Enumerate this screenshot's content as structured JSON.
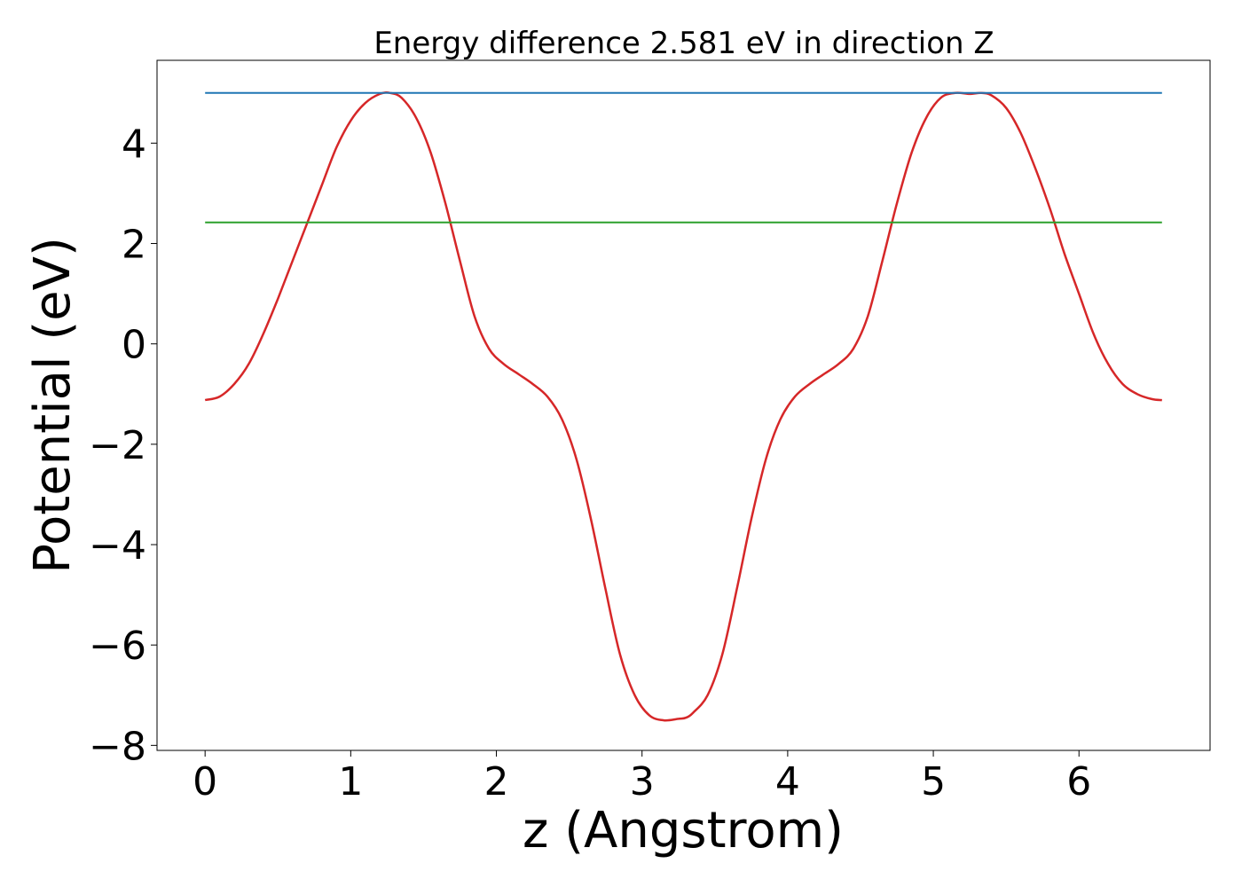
{
  "chart_data": {
    "type": "line",
    "title": "Energy difference 2.581 eV in direction Z",
    "xlabel": "z (Angstrom)",
    "ylabel": "Potential (eV)",
    "xlim": [
      -0.33,
      6.9
    ],
    "ylim": [
      -8.1,
      5.65
    ],
    "grid": false,
    "xticks": [
      0,
      1,
      2,
      3,
      4,
      5,
      6
    ],
    "xtick_labels": [
      "0",
      "1",
      "2",
      "3",
      "4",
      "5",
      "6"
    ],
    "yticks": [
      -8,
      -6,
      -4,
      -2,
      0,
      2,
      4
    ],
    "ytick_labels": [
      "−8",
      "−6",
      "−4",
      "−2",
      "0",
      "2",
      "4"
    ],
    "series": [
      {
        "color": "#d62728",
        "x": [
          0.0,
          0.1,
          0.2,
          0.3,
          0.4,
          0.5,
          0.6,
          0.7,
          0.8,
          0.9,
          1.0,
          1.1,
          1.2,
          1.27,
          1.35,
          1.45,
          1.55,
          1.65,
          1.75,
          1.85,
          1.95,
          2.05,
          2.15,
          2.25,
          2.35,
          2.45,
          2.55,
          2.65,
          2.75,
          2.85,
          2.95,
          3.05,
          3.15,
          3.25,
          3.3,
          3.35,
          3.45,
          3.55,
          3.65,
          3.75,
          3.85,
          3.95,
          4.05,
          4.15,
          4.25,
          4.35,
          4.45,
          4.55,
          4.65,
          4.75,
          4.85,
          4.95,
          5.05,
          5.15,
          5.25,
          5.33,
          5.4,
          5.5,
          5.6,
          5.7,
          5.8,
          5.9,
          6.0,
          6.1,
          6.2,
          6.3,
          6.4,
          6.5,
          6.57
        ],
        "y": [
          -1.12,
          -1.05,
          -0.8,
          -0.4,
          0.2,
          0.9,
          1.65,
          2.4,
          3.15,
          3.9,
          4.45,
          4.8,
          4.98,
          5.0,
          4.9,
          4.5,
          3.8,
          2.8,
          1.65,
          0.55,
          -0.1,
          -0.4,
          -0.6,
          -0.8,
          -1.05,
          -1.5,
          -2.3,
          -3.5,
          -4.9,
          -6.2,
          -7.0,
          -7.4,
          -7.5,
          -7.47,
          -7.45,
          -7.35,
          -7.0,
          -6.2,
          -4.9,
          -3.5,
          -2.3,
          -1.5,
          -1.05,
          -0.8,
          -0.6,
          -0.4,
          -0.1,
          0.55,
          1.65,
          2.8,
          3.8,
          4.5,
          4.9,
          5.0,
          4.98,
          5.0,
          4.95,
          4.7,
          4.2,
          3.5,
          2.7,
          1.8,
          1.0,
          0.2,
          -0.4,
          -0.8,
          -1.0,
          -1.1,
          -1.12
        ]
      },
      {
        "color": "#1f77b4",
        "x": [
          0.0,
          6.57
        ],
        "y": [
          5.0,
          5.0
        ]
      },
      {
        "color": "#2ca02c",
        "x": [
          0.0,
          6.57
        ],
        "y": [
          2.42,
          2.42
        ]
      }
    ]
  }
}
